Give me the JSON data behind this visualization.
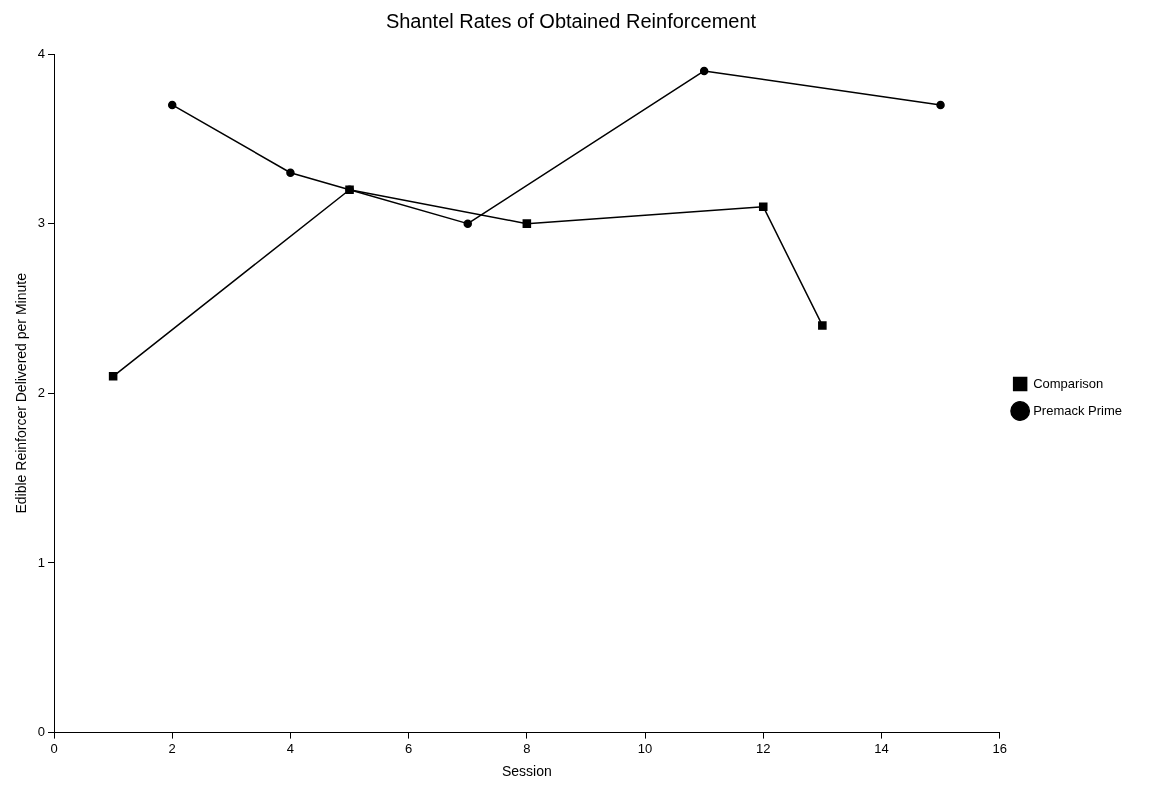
{
  "chart_data": {
    "type": "line",
    "title": "Shantel Rates of Obtained Reinforcement",
    "xlabel": "Session",
    "ylabel": "Edible Reinforcer Delivered per Minute",
    "series": [
      {
        "name": "Comparison",
        "color": "#000000",
        "marker": "square",
        "x": [
          1,
          5,
          8,
          12,
          13
        ],
        "values": [
          2.1,
          3.2,
          3.0,
          3.1,
          2.4
        ]
      },
      {
        "name": "Premack Prime",
        "color": "#000000",
        "marker": "circle",
        "x": [
          2,
          4,
          5,
          7,
          11,
          15
        ],
        "values": [
          3.7,
          3.3,
          3.2,
          3.0,
          3.9,
          3.7
        ]
      }
    ],
    "xlim": [
      0,
      16
    ],
    "xticks": [
      0,
      2,
      4,
      6,
      8,
      10,
      12,
      14,
      16
    ],
    "ylim": [
      0,
      4
    ],
    "yticks": [
      0,
      1,
      2,
      3,
      4
    ],
    "grid": false,
    "legend": "right",
    "line_style": "solid"
  }
}
